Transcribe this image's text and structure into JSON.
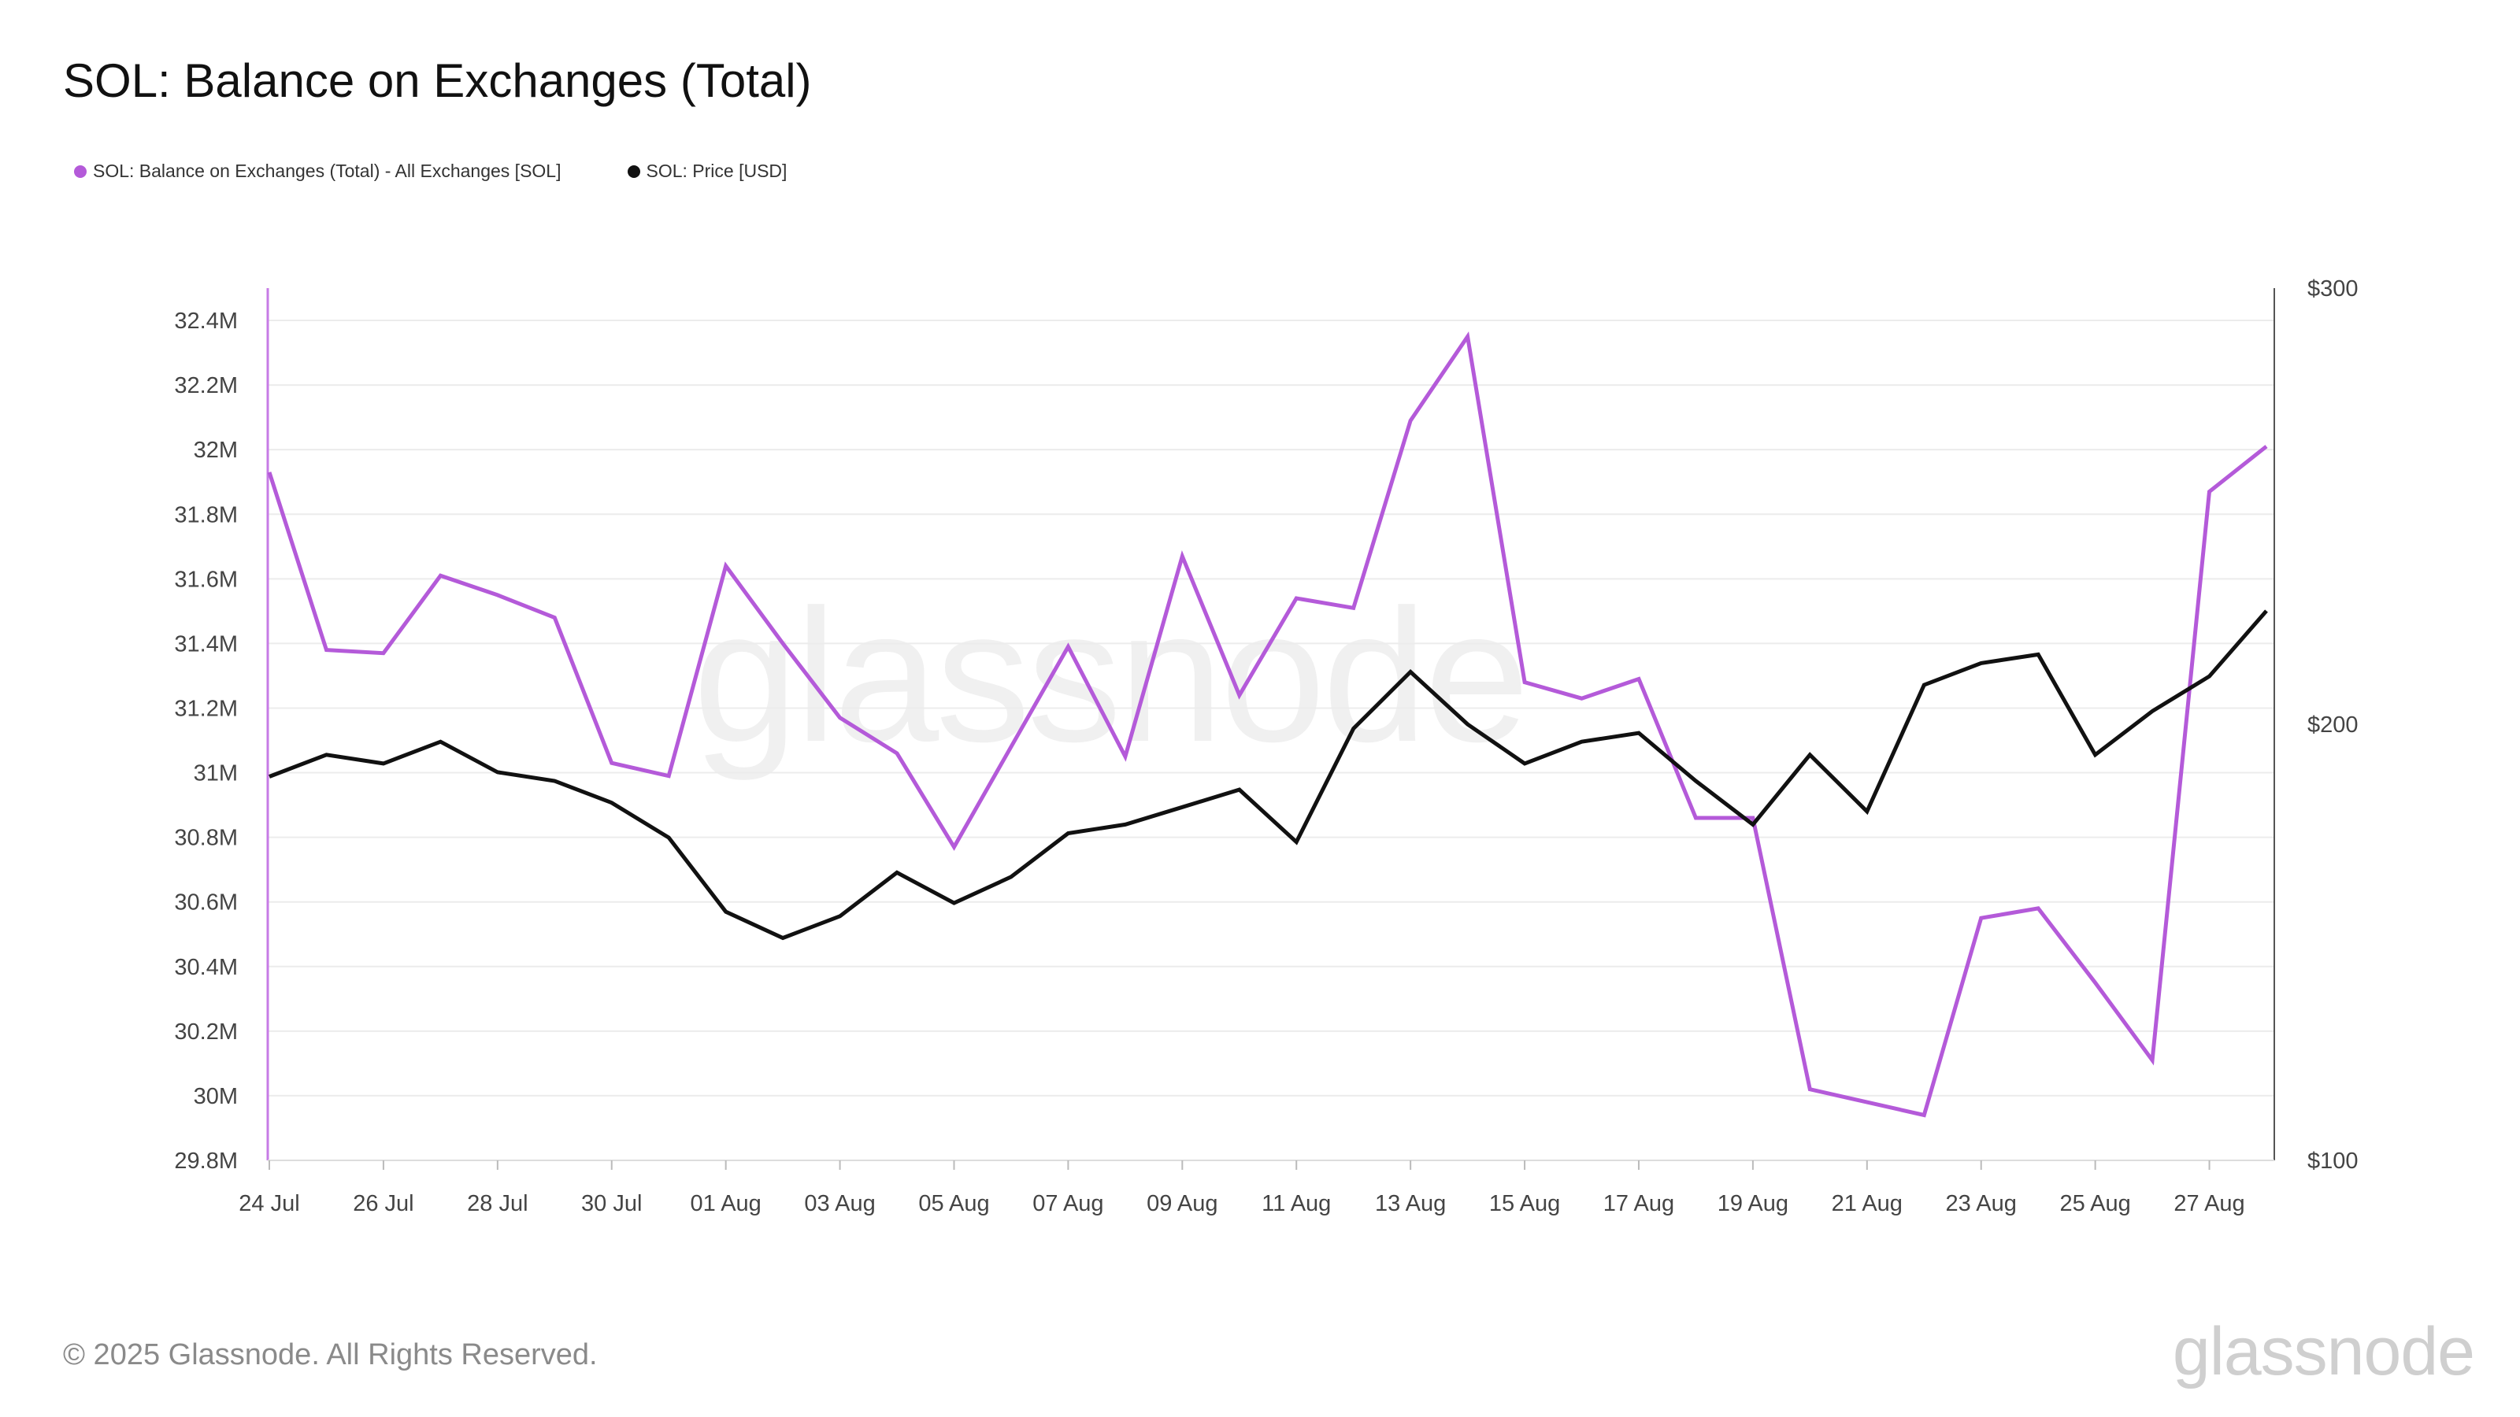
{
  "title": "SOL: Balance on Exchanges (Total)",
  "watermark": "glassnode",
  "legend": [
    {
      "label": "SOL: Balance on Exchanges (Total) - All Exchanges [SOL]",
      "color": "#b45ad9"
    },
    {
      "label": "SOL: Price [USD]",
      "color": "#111111"
    }
  ],
  "footer": {
    "copyright": "© 2025 Glassnode. All Rights Reserved.",
    "logo": "glassnode"
  },
  "chart_data": {
    "type": "line",
    "x": [
      "24 Jul",
      "25 Jul",
      "26 Jul",
      "27 Jul",
      "28 Jul",
      "29 Jul",
      "30 Jul",
      "31 Jul",
      "01 Aug",
      "02 Aug",
      "03 Aug",
      "04 Aug",
      "05 Aug",
      "06 Aug",
      "07 Aug",
      "08 Aug",
      "09 Aug",
      "10 Aug",
      "11 Aug",
      "12 Aug",
      "13 Aug",
      "14 Aug",
      "15 Aug",
      "16 Aug",
      "17 Aug",
      "18 Aug",
      "19 Aug",
      "20 Aug",
      "21 Aug",
      "22 Aug",
      "23 Aug",
      "24 Aug",
      "25 Aug",
      "26 Aug",
      "27 Aug",
      "28 Aug"
    ],
    "x_tick_labels": [
      "24 Jul",
      "26 Jul",
      "28 Jul",
      "30 Jul",
      "01 Aug",
      "03 Aug",
      "05 Aug",
      "07 Aug",
      "09 Aug",
      "11 Aug",
      "13 Aug",
      "15 Aug",
      "17 Aug",
      "19 Aug",
      "21 Aug",
      "23 Aug",
      "25 Aug",
      "27 Aug"
    ],
    "series": [
      {
        "name": "SOL: Balance on Exchanges (Total) - All Exchanges [SOL]",
        "axis": "left",
        "color": "#b45ad9",
        "values": [
          31.93,
          31.38,
          31.37,
          31.61,
          31.55,
          31.48,
          31.03,
          30.99,
          31.64,
          31.4,
          31.17,
          31.06,
          30.77,
          31.08,
          31.39,
          31.05,
          31.67,
          31.24,
          31.54,
          31.51,
          32.09,
          32.35,
          31.28,
          31.23,
          31.29,
          30.86,
          30.86,
          30.02,
          29.98,
          29.94,
          30.55,
          30.58,
          30.35,
          30.11,
          31.87,
          32.01
        ]
      },
      {
        "name": "SOL: Price [USD]",
        "axis": "right",
        "color": "#111111",
        "values": [
          188,
          193,
          191,
          196,
          189,
          187,
          182,
          174,
          157,
          151,
          156,
          166,
          159,
          165,
          175,
          177,
          181,
          185,
          173,
          199,
          212,
          200,
          191,
          196,
          198,
          187,
          177,
          193,
          180,
          209,
          214,
          216,
          193,
          203,
          211,
          226
        ]
      }
    ],
    "y_left": {
      "ticks": [
        29.8,
        30,
        30.2,
        30.4,
        30.6,
        30.8,
        31,
        31.2,
        31.4,
        31.6,
        31.8,
        32,
        32.2,
        32.4
      ],
      "tick_labels": [
        "29.8M",
        "30M",
        "30.2M",
        "30.4M",
        "30.6M",
        "30.8M",
        "31M",
        "31.2M",
        "31.4M",
        "31.6M",
        "31.8M",
        "32M",
        "32.2M",
        "32.4M"
      ],
      "range": [
        29.8,
        32.5
      ]
    },
    "y_right": {
      "ticks": [
        100,
        200,
        300
      ],
      "tick_labels": [
        "$100",
        "$200",
        "$300"
      ],
      "range": [
        100,
        300
      ]
    },
    "grid": true
  }
}
